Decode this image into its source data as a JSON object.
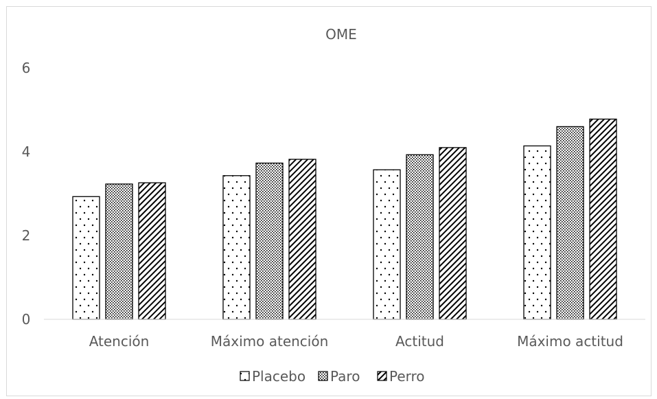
{
  "chart_data": {
    "type": "bar",
    "title": "OME",
    "xlabel": "",
    "ylabel": "",
    "ylim": [
      0,
      6
    ],
    "yticks": [
      0,
      2,
      4,
      6
    ],
    "grid": false,
    "legend_position": "bottom",
    "categories": [
      "Atención",
      "Máximo atención",
      "Actitud",
      "Máximo actitud"
    ],
    "series": [
      {
        "name": "Placebo",
        "pattern": "dots",
        "values": [
          2.93,
          3.43,
          3.57,
          4.14
        ]
      },
      {
        "name": "Paro",
        "pattern": "fine-dots",
        "values": [
          3.23,
          3.73,
          3.93,
          4.6
        ]
      },
      {
        "name": "Perro",
        "pattern": "diagonal-hatch",
        "values": [
          3.26,
          3.82,
          4.1,
          4.78
        ]
      }
    ],
    "colors": {
      "bar_edge": "#000000",
      "axis": "#d9d9d9",
      "text": "#595959"
    }
  }
}
